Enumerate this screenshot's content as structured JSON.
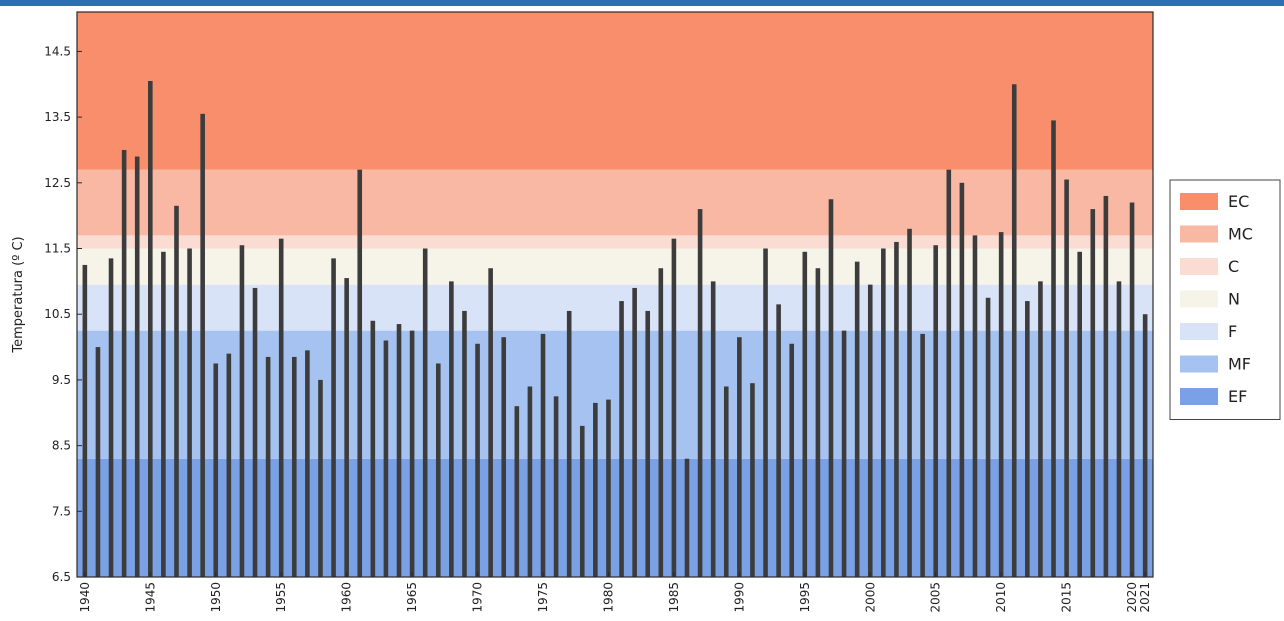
{
  "chart_data": {
    "type": "bar",
    "title": "",
    "xlabel": "",
    "ylabel": "Temperatura (º C)",
    "ylim": [
      6.5,
      15.1
    ],
    "xlim": [
      1939.4,
      2021.6
    ],
    "grid": false,
    "legend_position": "right",
    "bar_color": "#3c3c3c",
    "frame_color": "#2a2a2a",
    "top_bar_color": "#2f6db5",
    "y_ticks": [
      6.5,
      7.5,
      8.5,
      9.5,
      10.5,
      11.5,
      12.5,
      13.5,
      14.5
    ],
    "y_tick_labels": [
      "6.5",
      "7.5",
      "8.5",
      "9.5",
      "10.5",
      "11.5",
      "12.5",
      "13.5",
      "14.5"
    ],
    "x_ticks": [
      1940,
      1945,
      1950,
      1955,
      1960,
      1965,
      1970,
      1975,
      1980,
      1985,
      1990,
      1995,
      2000,
      2005,
      2010,
      2015,
      2020,
      2021
    ],
    "x_tick_labels": [
      "1940",
      "1945",
      "1950",
      "1955",
      "1960",
      "1965",
      "1970",
      "1975",
      "1980",
      "1985",
      "1990",
      "1995",
      "2000",
      "2005",
      "2010",
      "2015",
      "2020",
      "2021"
    ],
    "bands": [
      {
        "label": "EF",
        "from": 6.5,
        "to": 8.3,
        "color": "#7aa0e6"
      },
      {
        "label": "MF",
        "from": 8.3,
        "to": 10.25,
        "color": "#a6c2f0"
      },
      {
        "label": "F",
        "from": 10.25,
        "to": 10.95,
        "color": "#d8e3f7"
      },
      {
        "label": "N",
        "from": 10.95,
        "to": 11.5,
        "color": "#f6f4e8"
      },
      {
        "label": "C",
        "from": 11.5,
        "to": 11.7,
        "color": "#fbdcd2"
      },
      {
        "label": "MC",
        "from": 11.7,
        "to": 12.7,
        "color": "#f9b8a3"
      },
      {
        "label": "EC",
        "from": 12.7,
        "to": 15.1,
        "color": "#f98e6c"
      }
    ],
    "legend": [
      {
        "label": "EC",
        "color": "#f98e6c"
      },
      {
        "label": "MC",
        "color": "#f9b8a3"
      },
      {
        "label": "C",
        "color": "#fbdcd2"
      },
      {
        "label": "N",
        "color": "#f6f4e8"
      },
      {
        "label": "F",
        "color": "#d8e3f7"
      },
      {
        "label": "MF",
        "color": "#a6c2f0"
      },
      {
        "label": "EF",
        "color": "#7aa0e6"
      }
    ],
    "x": [
      1940,
      1941,
      1942,
      1943,
      1944,
      1945,
      1946,
      1947,
      1948,
      1949,
      1950,
      1951,
      1952,
      1953,
      1954,
      1955,
      1956,
      1957,
      1958,
      1959,
      1960,
      1961,
      1962,
      1963,
      1964,
      1965,
      1966,
      1967,
      1968,
      1969,
      1970,
      1971,
      1972,
      1973,
      1974,
      1975,
      1976,
      1977,
      1978,
      1979,
      1980,
      1981,
      1982,
      1983,
      1984,
      1985,
      1986,
      1987,
      1988,
      1989,
      1990,
      1991,
      1992,
      1993,
      1994,
      1995,
      1996,
      1997,
      1998,
      1999,
      2000,
      2001,
      2002,
      2003,
      2004,
      2005,
      2006,
      2007,
      2008,
      2009,
      2010,
      2011,
      2012,
      2013,
      2014,
      2015,
      2016,
      2017,
      2018,
      2019,
      2020,
      2021
    ],
    "values": [
      11.25,
      10.0,
      11.35,
      13.0,
      12.9,
      14.05,
      11.45,
      12.15,
      11.5,
      13.55,
      9.75,
      9.9,
      11.55,
      10.9,
      9.85,
      11.65,
      9.85,
      9.95,
      9.5,
      11.35,
      11.05,
      12.7,
      10.4,
      10.1,
      10.35,
      10.25,
      11.5,
      9.75,
      11.0,
      10.55,
      10.05,
      11.2,
      10.15,
      9.1,
      9.4,
      10.2,
      9.25,
      10.55,
      8.8,
      9.15,
      9.2,
      10.7,
      10.9,
      10.55,
      11.2,
      11.65,
      8.3,
      12.1,
      11.0,
      9.4,
      10.15,
      9.45,
      11.5,
      10.65,
      10.05,
      11.45,
      11.2,
      12.25,
      10.25,
      11.3,
      10.95,
      11.5,
      11.6,
      11.8,
      10.2,
      11.55,
      12.7,
      12.5,
      11.7,
      10.75,
      11.75,
      14.0,
      10.7,
      11.0,
      13.45,
      12.55,
      11.45,
      12.1,
      12.3,
      11.0,
      12.2,
      10.5
    ]
  }
}
